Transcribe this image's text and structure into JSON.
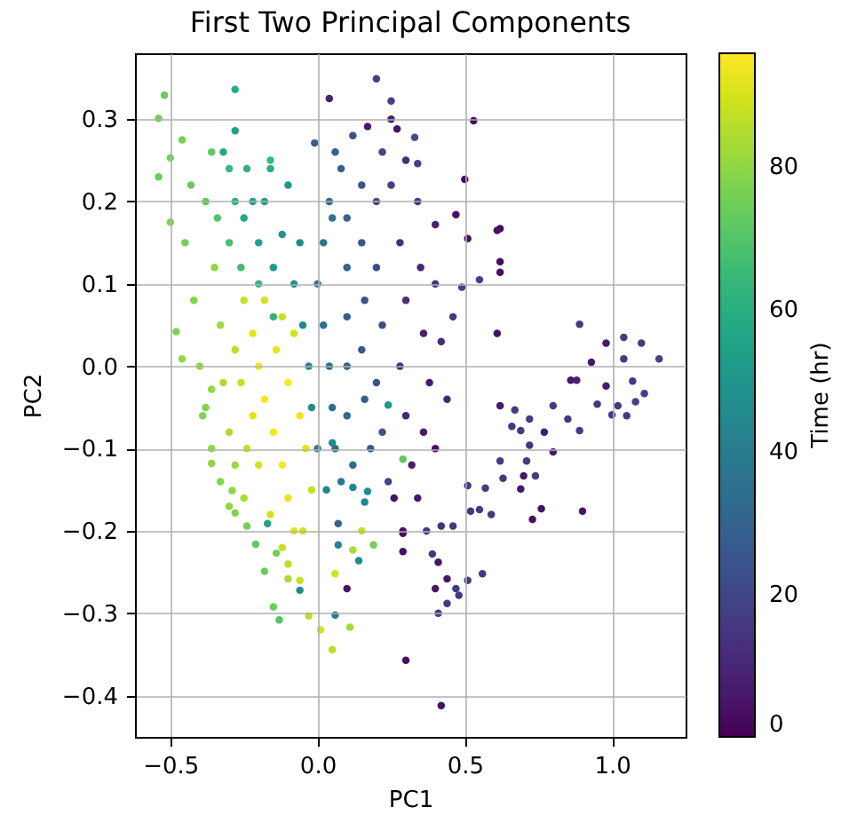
{
  "chart_data": {
    "type": "scatter",
    "title": "First Two Principal Components",
    "xlabel": "PC1",
    "ylabel": "PC2",
    "clabel": "Time (hr)",
    "x": [
      -0.52,
      -0.54,
      -0.28,
      -0.28,
      -0.46,
      -0.32,
      -0.16,
      -0.5,
      -0.54,
      -0.5,
      -0.48,
      -0.46,
      0.04,
      0.2,
      0.25,
      0.17,
      -0.01,
      0.27,
      0.33,
      0.53,
      0.5,
      0.34,
      0.47,
      0.62,
      0.61,
      0.62,
      0.62,
      0.55,
      0.51,
      0.4,
      0.49,
      0.61,
      0.89,
      0.98,
      1.04,
      1.1,
      1.16,
      1.04,
      0.93,
      0.86,
      0.98,
      1.07,
      1.11,
      0.88,
      1.02,
      0.95,
      1.08,
      1.05,
      1.0,
      0.85,
      0.89,
      0.8,
      0.77,
      0.72,
      0.67,
      0.62,
      0.66,
      0.69,
      0.72,
      0.8,
      0.62,
      0.71,
      0.74,
      0.63,
      0.7,
      0.69,
      0.57,
      0.76,
      0.73,
      0.9,
      0.59,
      0.55,
      0.52,
      0.46,
      0.42,
      0.37,
      0.29,
      0.29,
      0.39,
      0.41,
      0.56,
      0.51,
      0.44,
      0.4,
      0.47,
      0.48,
      0.44,
      0.41,
      0.3,
      0.42,
      0.29,
      0.19,
      0.15,
      0.24,
      0.17,
      0.51,
      -0.36,
      -0.39,
      -0.36,
      -0.29,
      -0.28,
      -0.24,
      -0.21,
      -0.17,
      -0.14,
      -0.18,
      -0.15,
      -0.13,
      -0.1,
      -0.06,
      -0.03,
      0.01,
      0.05,
      0.06,
      0.11,
      0.1,
      0.06,
      0.12,
      0.14,
      0.07,
      0.07,
      0.16,
      0.12,
      0.05,
      0.29,
      -0.45,
      -0.42,
      -0.4,
      -0.38,
      -0.36,
      -0.33,
      -0.3,
      -0.38,
      -0.43,
      -0.35,
      -0.33,
      -0.32,
      -0.3,
      -0.28,
      -0.25,
      -0.34,
      -0.25,
      -0.22,
      -0.2,
      -0.18,
      -0.15,
      -0.12,
      -0.1,
      -0.08,
      -0.14,
      -0.1,
      -0.06,
      -0.04,
      -0.22,
      -0.2,
      -0.16,
      -0.12,
      -0.26,
      -0.24,
      -0.05,
      -0.02,
      -0.08,
      -0.18,
      -0.12,
      -0.28,
      -0.06,
      -0.1,
      -0.28,
      -0.25,
      -0.2,
      -0.15,
      -0.22,
      -0.3,
      -0.18,
      -0.12,
      -0.26,
      -0.2,
      -0.15,
      -0.08,
      -0.05,
      -0.03,
      -0.02,
      -0.06,
      -0.1,
      -0.16,
      -0.24,
      -0.3,
      -0.36,
      0.0,
      0.02,
      0.04,
      0.05,
      0.06,
      0.02,
      0.04,
      0.08,
      0.1,
      0.1,
      0.1,
      0.1,
      0.1,
      0.12,
      0.15,
      0.15,
      0.16,
      0.15,
      0.16,
      0.18,
      0.2,
      0.2,
      0.22,
      0.2,
      0.22,
      0.24,
      0.06,
      0.12,
      0.0,
      0.03,
      0.08,
      0.05,
      0.25,
      0.28,
      0.3,
      0.28,
      0.3,
      0.32,
      0.34,
      0.35,
      0.36,
      0.38,
      0.36,
      0.4,
      0.42,
      0.44,
      0.4,
      0.3,
      0.26,
      0.34,
      0.22,
      0.46,
      0.25
    ],
    "values": [
      0.329,
      0.301,
      0.336,
      0.286,
      0.275,
      0.26,
      0.25,
      0.253,
      0.23,
      0.175,
      0.042,
      0.009,
      0.325,
      0.349,
      0.322,
      0.291,
      0.271,
      0.288,
      0.278,
      0.298,
      0.227,
      0.246,
      0.184,
      0.167,
      0.165,
      0.127,
      0.114,
      0.105,
      0.155,
      0.172,
      0.096,
      0.04,
      0.051,
      0.028,
      0.035,
      0.028,
      0.009,
      0.009,
      0.005,
      -0.017,
      -0.024,
      -0.018,
      -0.033,
      -0.017,
      -0.048,
      -0.046,
      -0.043,
      -0.06,
      -0.059,
      -0.064,
      -0.078,
      -0.048,
      -0.08,
      -0.064,
      -0.053,
      -0.048,
      -0.073,
      -0.078,
      -0.096,
      -0.104,
      -0.115,
      -0.115,
      -0.133,
      -0.136,
      -0.133,
      -0.149,
      -0.148,
      -0.173,
      -0.186,
      -0.176,
      -0.18,
      -0.174,
      -0.176,
      -0.194,
      -0.194,
      -0.2,
      -0.203,
      -0.225,
      -0.228,
      -0.238,
      -0.252,
      -0.26,
      -0.258,
      -0.27,
      -0.27,
      -0.278,
      -0.288,
      -0.3,
      -0.357,
      -0.412,
      -0.113,
      -0.217,
      -0.2,
      -0.047,
      -0.152,
      -0.145,
      -0.028,
      -0.06,
      -0.118,
      -0.151,
      -0.178,
      -0.194,
      -0.216,
      -0.191,
      -0.227,
      -0.249,
      -0.292,
      -0.308,
      -0.258,
      -0.272,
      -0.303,
      -0.32,
      -0.344,
      -0.302,
      -0.317,
      -0.27,
      -0.252,
      -0.223,
      -0.236,
      -0.217,
      -0.191,
      -0.165,
      -0.147,
      -0.093,
      -0.2,
      0.15,
      0.08,
      0.0,
      -0.05,
      -0.1,
      -0.14,
      -0.17,
      0.2,
      0.22,
      0.12,
      0.05,
      -0.02,
      -0.08,
      -0.12,
      -0.16,
      0.18,
      0.08,
      0.04,
      0.0,
      -0.04,
      -0.08,
      -0.12,
      -0.16,
      -0.2,
      0.02,
      -0.02,
      -0.06,
      -0.1,
      -0.06,
      -0.12,
      -0.18,
      -0.22,
      -0.02,
      -0.1,
      -0.2,
      -0.15,
      0.04,
      0.08,
      0.06,
      0.02,
      -0.26,
      -0.24,
      0.2,
      0.18,
      0.15,
      0.12,
      0.2,
      0.15,
      0.2,
      0.16,
      0.12,
      0.1,
      0.06,
      0.1,
      0.05,
      0.0,
      -0.05,
      0.15,
      0.22,
      0.24,
      0.24,
      0.24,
      0.26,
      0.1,
      0.05,
      0.0,
      -0.05,
      -0.1,
      0.15,
      0.2,
      0.24,
      0.18,
      0.12,
      0.06,
      0.0,
      -0.06,
      -0.12,
      0.22,
      0.15,
      0.08,
      0.02,
      -0.04,
      -0.1,
      0.2,
      0.12,
      0.05,
      -0.02,
      -0.08,
      -0.14,
      0.26,
      0.28,
      -0.1,
      -0.15,
      -0.14,
      0.18,
      0.22,
      0.15,
      0.08,
      0.0,
      -0.06,
      -0.12,
      0.2,
      0.12,
      0.04,
      -0.02,
      -0.08,
      0.1,
      0.03,
      -0.04,
      -0.1,
      0.25,
      -0.16,
      -0.16,
      0.26,
      0.06,
      0.3
    ],
    "cvalues": [
      74,
      76,
      60,
      55,
      76,
      58,
      65,
      76,
      74,
      78,
      78,
      80,
      8,
      18,
      18,
      6,
      28,
      5,
      22,
      3,
      3,
      20,
      4,
      3,
      4,
      3,
      4,
      18,
      4,
      8,
      18,
      4,
      16,
      6,
      16,
      16,
      18,
      16,
      6,
      6,
      6,
      16,
      18,
      8,
      16,
      16,
      18,
      16,
      16,
      16,
      16,
      16,
      6,
      16,
      16,
      6,
      16,
      16,
      16,
      6,
      16,
      16,
      16,
      16,
      5,
      5,
      16,
      4,
      4,
      5,
      16,
      16,
      16,
      16,
      14,
      16,
      4,
      4,
      16,
      5,
      16,
      16,
      5,
      5,
      16,
      16,
      16,
      16,
      4,
      4,
      72,
      76,
      88,
      52,
      46,
      16,
      80,
      78,
      80,
      80,
      78,
      76,
      72,
      56,
      76,
      74,
      74,
      70,
      84,
      46,
      86,
      90,
      86,
      42,
      82,
      5,
      90,
      84,
      46,
      44,
      30,
      44,
      44,
      46,
      4,
      76,
      78,
      80,
      78,
      80,
      78,
      80,
      72,
      74,
      80,
      82,
      84,
      84,
      82,
      84,
      70,
      88,
      92,
      94,
      95,
      94,
      95,
      93,
      92,
      93,
      95,
      94,
      92,
      92,
      90,
      90,
      88,
      88,
      88,
      90,
      88,
      90,
      90,
      88,
      86,
      88,
      86,
      62,
      58,
      55,
      52,
      56,
      68,
      54,
      50,
      66,
      64,
      62,
      48,
      46,
      44,
      46,
      46,
      50,
      60,
      62,
      64,
      72,
      38,
      36,
      34,
      34,
      36,
      38,
      32,
      28,
      30,
      30,
      28,
      30,
      32,
      34,
      26,
      26,
      24,
      26,
      28,
      28,
      22,
      22,
      22,
      24,
      24,
      20,
      30,
      24,
      40,
      42,
      38,
      36,
      18,
      14,
      12,
      14,
      10,
      8,
      16,
      10,
      8,
      6,
      6,
      14,
      12,
      10,
      4,
      12,
      4,
      6,
      20,
      16,
      8
    ],
    "xlim": [
      -0.62,
      1.25
    ],
    "ylim": [
      -0.45,
      0.38
    ],
    "xticks": [
      -0.5,
      {
        "value": 0,
        "label": "0.0"
      },
      0.5,
      {
        "value": 1,
        "label": "1.0"
      }
    ],
    "yticks": [
      -0.4,
      -0.3,
      -0.2,
      -0.1,
      {
        "value": 0,
        "label": "0.0"
      },
      0.1,
      0.2,
      0.3
    ],
    "clim": [
      0,
      96
    ],
    "cticks": [
      0,
      20,
      40,
      60,
      80
    ],
    "grid": true,
    "marker": "circle"
  }
}
